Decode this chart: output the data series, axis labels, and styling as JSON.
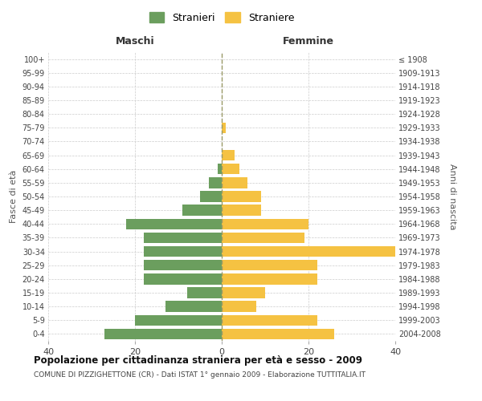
{
  "age_groups": [
    "0-4",
    "5-9",
    "10-14",
    "15-19",
    "20-24",
    "25-29",
    "30-34",
    "35-39",
    "40-44",
    "45-49",
    "50-54",
    "55-59",
    "60-64",
    "65-69",
    "70-74",
    "75-79",
    "80-84",
    "85-89",
    "90-94",
    "95-99",
    "100+"
  ],
  "birth_years": [
    "2004-2008",
    "1999-2003",
    "1994-1998",
    "1989-1993",
    "1984-1988",
    "1979-1983",
    "1974-1978",
    "1969-1973",
    "1964-1968",
    "1959-1963",
    "1954-1958",
    "1949-1953",
    "1944-1948",
    "1939-1943",
    "1934-1938",
    "1929-1933",
    "1924-1928",
    "1919-1923",
    "1914-1918",
    "1909-1913",
    "≤ 1908"
  ],
  "maschi": [
    27,
    20,
    13,
    8,
    18,
    18,
    18,
    18,
    22,
    9,
    5,
    3,
    1,
    0,
    0,
    0,
    0,
    0,
    0,
    0,
    0
  ],
  "femmine": [
    26,
    22,
    8,
    10,
    22,
    22,
    40,
    19,
    20,
    9,
    9,
    6,
    4,
    3,
    0,
    1,
    0,
    0,
    0,
    0,
    0
  ],
  "color_maschi": "#6b9e5e",
  "color_femmine": "#f5c242",
  "title": "Popolazione per cittadinanza straniera per età e sesso - 2009",
  "subtitle": "COMUNE DI PIZZIGHETTONE (CR) - Dati ISTAT 1° gennaio 2009 - Elaborazione TUTTITALIA.IT",
  "label_left": "Maschi",
  "label_right": "Femmine",
  "ylabel_left": "Fasce di età",
  "ylabel_right": "Anni di nascita",
  "legend_maschi": "Stranieri",
  "legend_femmine": "Straniere",
  "xlim": 40,
  "background_color": "#ffffff",
  "grid_color": "#cccccc"
}
